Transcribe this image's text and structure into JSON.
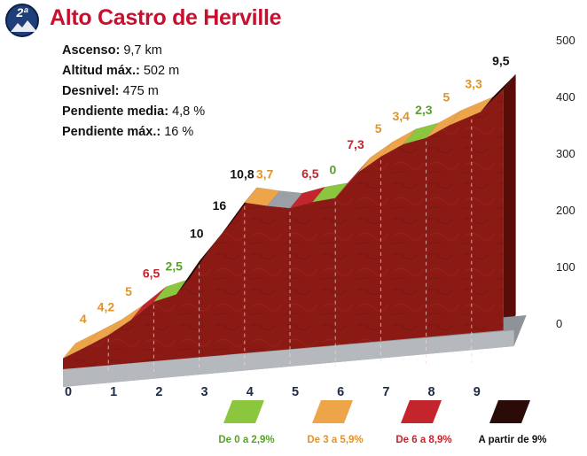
{
  "header": {
    "category": "2ª",
    "title": "Alto Castro de Herville"
  },
  "stats": [
    {
      "label": "Ascenso:",
      "value": "9,7 km"
    },
    {
      "label": "Altitud máx.:",
      "value": "502 m"
    },
    {
      "label": "Desnivel:",
      "value": "475 m"
    },
    {
      "label": "Pendiente media:",
      "value": "4,8 %"
    },
    {
      "label": "Pendiente máx.:",
      "value": "16 %"
    }
  ],
  "legend": [
    {
      "label": "De 0 a 2,9%",
      "color": "#8cc63f",
      "text_color": "#5aa02c"
    },
    {
      "label": "De 3 a 5,9%",
      "color": "#eea54a",
      "text_color": "#e0932b"
    },
    {
      "label": "De 6 a 8,9%",
      "color": "#c4242b",
      "text_color": "#c4242b"
    },
    {
      "label": "A partir de 9%",
      "color": "#2b0b07",
      "text_color": "#111111"
    }
  ],
  "chart_data": {
    "type": "area",
    "xlabel": "",
    "ylabel": "",
    "xticks": [
      "0",
      "1",
      "2",
      "3",
      "4",
      "5",
      "6",
      "7",
      "8",
      "9"
    ],
    "yticks": [
      "0",
      "100",
      "200",
      "300",
      "400",
      "500"
    ],
    "xlim": [
      0,
      9.7
    ],
    "ylim": [
      0,
      500
    ],
    "colors": {
      "De 0 a 2,9%": "#8cc63f",
      "De 3 a 5,9%": "#eea54a",
      "De 6 a 8,9%": "#c4242b",
      "A partir de 9%": "#2b0b07",
      "descent": "#9aa0a6",
      "terrain": "#8b1a14"
    },
    "segments": [
      {
        "x0": 0.0,
        "x1": 0.5,
        "y0": 27,
        "y1": 47,
        "gradient_label": "4",
        "category": "De 3 a 5,9%"
      },
      {
        "x0": 0.5,
        "x1": 1.0,
        "y0": 47,
        "y1": 68,
        "gradient_label": "4,2",
        "category": "De 3 a 5,9%"
      },
      {
        "x0": 1.0,
        "x1": 1.5,
        "y0": 68,
        "y1": 95,
        "gradient_label": "5",
        "category": "De 3 a 5,9%"
      },
      {
        "x0": 1.5,
        "x1": 2.0,
        "y0": 95,
        "y1": 127,
        "gradient_label": "6,5",
        "category": "De 6 a 8,9%"
      },
      {
        "x0": 2.0,
        "x1": 2.5,
        "y0": 127,
        "y1": 140,
        "gradient_label": "2,5",
        "category": "De 0 a 2,9%"
      },
      {
        "x0": 2.5,
        "x1": 3.0,
        "y0": 140,
        "y1": 198,
        "gradient_label": "10",
        "category": "A partir de 9%"
      },
      {
        "x0": 3.0,
        "x1": 3.5,
        "y0": 198,
        "y1": 247,
        "gradient_label": "16",
        "category": "A partir de 9%"
      },
      {
        "x0": 3.5,
        "x1": 4.0,
        "y0": 247,
        "y1": 302,
        "gradient_label": "10,8",
        "category": "A partir de 9%"
      },
      {
        "x0": 4.0,
        "x1": 4.5,
        "y0": 302,
        "y1": 296,
        "gradient_label": "3,7",
        "category": "De 3 a 5,9%"
      },
      {
        "x0": 4.5,
        "x1": 5.0,
        "y0": 296,
        "y1": 292,
        "gradient_label": "",
        "category": "descent"
      },
      {
        "x0": 5.0,
        "x1": 5.5,
        "y0": 292,
        "y1": 303,
        "gradient_label": "6,5",
        "category": "De 6 a 8,9%"
      },
      {
        "x0": 5.5,
        "x1": 6.0,
        "y0": 303,
        "y1": 310,
        "gradient_label": "0",
        "category": "De 0 a 2,9%"
      },
      {
        "x0": 6.0,
        "x1": 6.5,
        "y0": 310,
        "y1": 355,
        "gradient_label": "7,3",
        "category": "De 6 a 8,9%"
      },
      {
        "x0": 6.5,
        "x1": 7.0,
        "y0": 355,
        "y1": 383,
        "gradient_label": "5",
        "category": "De 3 a 5,9%"
      },
      {
        "x0": 7.0,
        "x1": 7.5,
        "y0": 383,
        "y1": 405,
        "gradient_label": "3,4",
        "category": "De 3 a 5,9%"
      },
      {
        "x0": 7.5,
        "x1": 8.0,
        "y0": 405,
        "y1": 416,
        "gradient_label": "2,3",
        "category": "De 0 a 2,9%"
      },
      {
        "x0": 8.0,
        "x1": 8.5,
        "y0": 416,
        "y1": 438,
        "gradient_label": "5",
        "category": "De 3 a 5,9%"
      },
      {
        "x0": 8.5,
        "x1": 9.2,
        "y0": 438,
        "y1": 462,
        "gradient_label": "3,3",
        "category": "De 3 a 5,9%"
      },
      {
        "x0": 9.2,
        "x1": 9.7,
        "y0": 462,
        "y1": 502,
        "gradient_label": "9,5",
        "category": "A partir de 9%"
      }
    ]
  }
}
